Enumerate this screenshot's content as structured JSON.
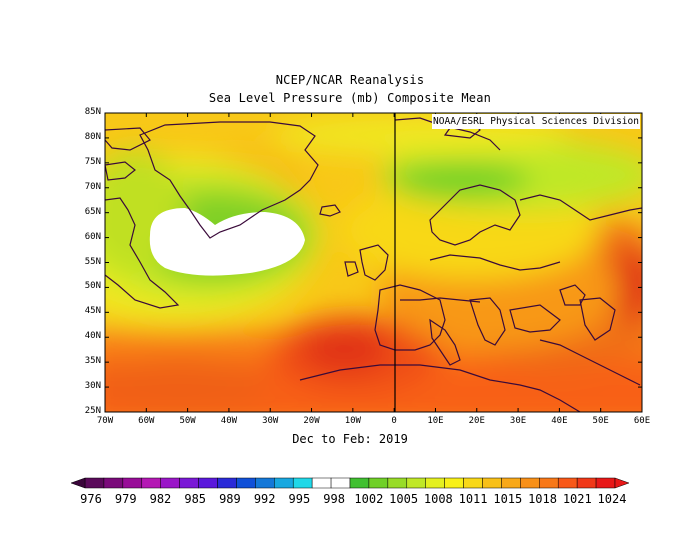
{
  "header": {
    "title_line1": "NCEP/NCAR Reanalysis",
    "title_line2": "Sea Level Pressure (mb) Composite Mean"
  },
  "credit": "NOAA/ESRL Physical Sciences Division",
  "period_label": "Dec to Feb: 2019",
  "axes": {
    "lat_labels": [
      "85N",
      "80N",
      "75N",
      "70N",
      "65N",
      "60N",
      "55N",
      "50N",
      "45N",
      "40N",
      "35N",
      "30N",
      "25N"
    ],
    "lon_labels": [
      "70W",
      "60W",
      "50W",
      "40W",
      "30W",
      "20W",
      "10W",
      "0",
      "10E",
      "20E",
      "30E",
      "40E",
      "50E",
      "60E"
    ],
    "lat_range": [
      25,
      85
    ],
    "lon_range": [
      -70,
      60
    ]
  },
  "colorbar": {
    "labels": [
      "976",
      "979",
      "982",
      "985",
      "989",
      "992",
      "995",
      "998",
      "1002",
      "1005",
      "1008",
      "1011",
      "1015",
      "1018",
      "1021",
      "1024"
    ],
    "colors": [
      "#5a0a5a",
      "#7a0a7a",
      "#980c98",
      "#b418b4",
      "#9a16c8",
      "#7a18d6",
      "#5a18dc",
      "#2a2ad8",
      "#1050d8",
      "#1478d8",
      "#18a8e0",
      "#20d8e8",
      "#ffffff",
      "#ffffff",
      "#40c030",
      "#70d028",
      "#98dc28",
      "#c0e828",
      "#e4f020",
      "#f8f018",
      "#f8d818",
      "#f8c018",
      "#f8a818",
      "#f89018",
      "#f87818",
      "#f85818",
      "#f03818",
      "#e81818"
    ],
    "arrow_left_color": "#3a053a",
    "arrow_right_color": "#e81818"
  }
}
